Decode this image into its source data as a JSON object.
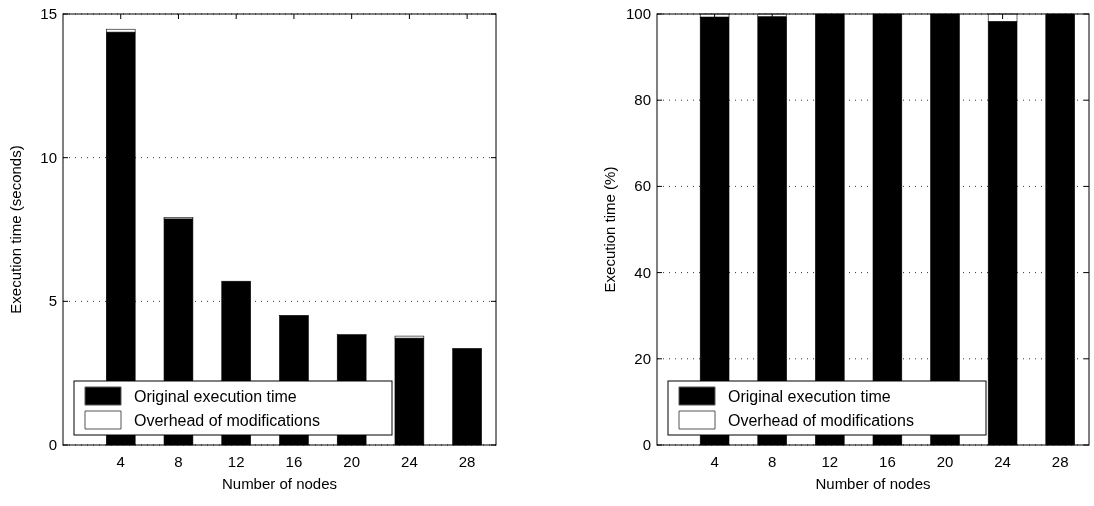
{
  "chart_data": [
    {
      "type": "bar",
      "stacked": true,
      "x": [
        4,
        8,
        12,
        16,
        20,
        24,
        28
      ],
      "xlabel": "Number of nodes",
      "ylabel": "Execution time (seconds)",
      "xlim": [
        0,
        30
      ],
      "xticks": [
        4,
        8,
        12,
        16,
        20,
        24,
        28
      ],
      "ylim": [
        0,
        15
      ],
      "yticks": [
        0,
        5,
        10,
        15
      ],
      "grid": "y",
      "legend": "bottom left",
      "series": [
        {
          "name": "Original execution time",
          "color": "#000000",
          "values": [
            14.37,
            7.87,
            5.7,
            4.51,
            3.84,
            3.72,
            3.36
          ]
        },
        {
          "name": "Overhead of modifications",
          "color": "#ffffff",
          "values": [
            0.1,
            0.05,
            0,
            0,
            0,
            0.07,
            0
          ]
        }
      ]
    },
    {
      "type": "bar",
      "stacked": true,
      "x": [
        4,
        8,
        12,
        16,
        20,
        24,
        28
      ],
      "xlabel": "Number of nodes",
      "ylabel": "Execution time (%)",
      "xlim": [
        0,
        30
      ],
      "xticks": [
        4,
        8,
        12,
        16,
        20,
        24,
        28
      ],
      "ylim": [
        0,
        100
      ],
      "yticks": [
        0,
        20,
        40,
        60,
        80,
        100
      ],
      "grid": "y",
      "legend": "bottom left",
      "series": [
        {
          "name": "Original execution time",
          "color": "#000000",
          "values": [
            99.3,
            99.4,
            100,
            100,
            100,
            98.3,
            100
          ]
        },
        {
          "name": "Overhead of modifications",
          "color": "#ffffff",
          "values": [
            0.7,
            0.6,
            0,
            0,
            0,
            1.7,
            0
          ]
        }
      ]
    }
  ]
}
